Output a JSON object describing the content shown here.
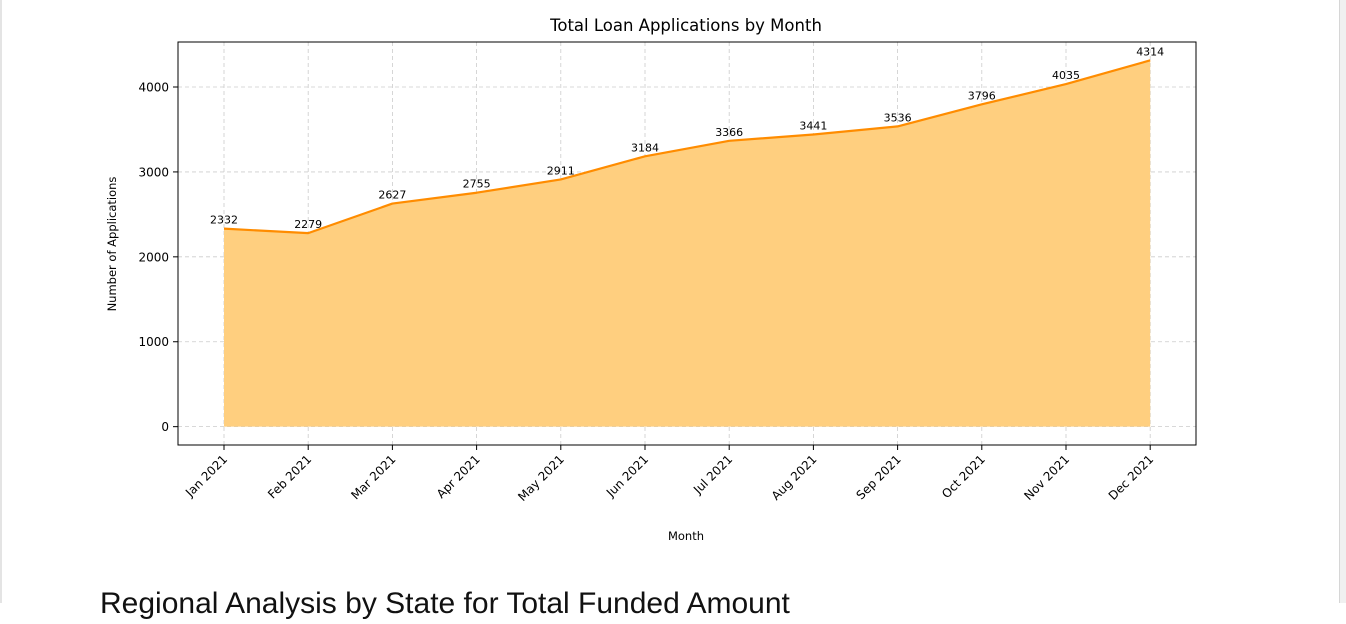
{
  "chart_data": {
    "type": "area",
    "title": "Total Loan Applications by Month",
    "xlabel": "Month",
    "ylabel": "Number of Applications",
    "categories": [
      "Jan 2021",
      "Feb 2021",
      "Mar 2021",
      "Apr 2021",
      "May 2021",
      "Jun 2021",
      "Jul 2021",
      "Aug 2021",
      "Sep 2021",
      "Oct 2021",
      "Nov 2021",
      "Dec 2021"
    ],
    "values": [
      2332,
      2279,
      2627,
      2755,
      2911,
      3184,
      3366,
      3441,
      3536,
      3796,
      4035,
      4314
    ],
    "ylim": [
      -216,
      4530
    ],
    "yticks": [
      0,
      1000,
      2000,
      3000,
      4000
    ],
    "grid": true,
    "line_color": "#ff8c00",
    "fill_color": "#ffcf7f"
  },
  "next_section": {
    "heading": "Regional Analysis by State for Total Funded Amount"
  }
}
